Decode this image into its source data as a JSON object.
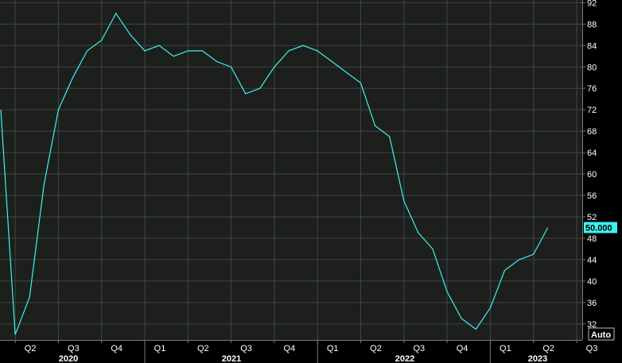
{
  "chart_data": {
    "type": "line",
    "series": [
      {
        "color": "#3ff0f0",
        "x": [
          "2020-03",
          "2020-04",
          "2020-05",
          "2020-06",
          "2020-07",
          "2020-08",
          "2020-09",
          "2020-10",
          "2020-11",
          "2020-12",
          "2021-01",
          "2021-02",
          "2021-03",
          "2021-04",
          "2021-05",
          "2021-06",
          "2021-07",
          "2021-08",
          "2021-09",
          "2021-10",
          "2021-11",
          "2021-12",
          "2022-01",
          "2022-02",
          "2022-03",
          "2022-04",
          "2022-05",
          "2022-06",
          "2022-07",
          "2022-08",
          "2022-09",
          "2022-10",
          "2022-11",
          "2022-12",
          "2023-01",
          "2023-02",
          "2023-03",
          "2023-04",
          "2023-05"
        ],
        "values": [
          72,
          30,
          37,
          58,
          72,
          78,
          83,
          85,
          90,
          86,
          83,
          84,
          82,
          83,
          83,
          81,
          80,
          75,
          76,
          80,
          83,
          84,
          83,
          81,
          79,
          77,
          69,
          67,
          55,
          49,
          46,
          38,
          33,
          31,
          35,
          42,
          44,
          45,
          50
        ]
      }
    ],
    "y_ticks": [
      "32",
      "36",
      "40",
      "44",
      "48",
      "52",
      "56",
      "60",
      "64",
      "68",
      "72",
      "76",
      "80",
      "84",
      "88",
      "92"
    ],
    "ylim": [
      29,
      92.5
    ],
    "x_ticks": [
      "Q2",
      "Q3",
      "Q4",
      "Q1",
      "Q2",
      "Q3",
      "Q4",
      "Q1",
      "Q2",
      "Q3",
      "Q4",
      "Q1",
      "Q2",
      "Q3"
    ],
    "years": [
      "2020",
      "2021",
      "2022",
      "2023"
    ],
    "last_value_label": "50.000",
    "auto_label": "Auto",
    "grid": true,
    "colors": {
      "background": "#000000",
      "plot": "#1c1f1c",
      "grid": "#3f4447",
      "line": "#3ff0f0",
      "axis": "#777777"
    }
  }
}
